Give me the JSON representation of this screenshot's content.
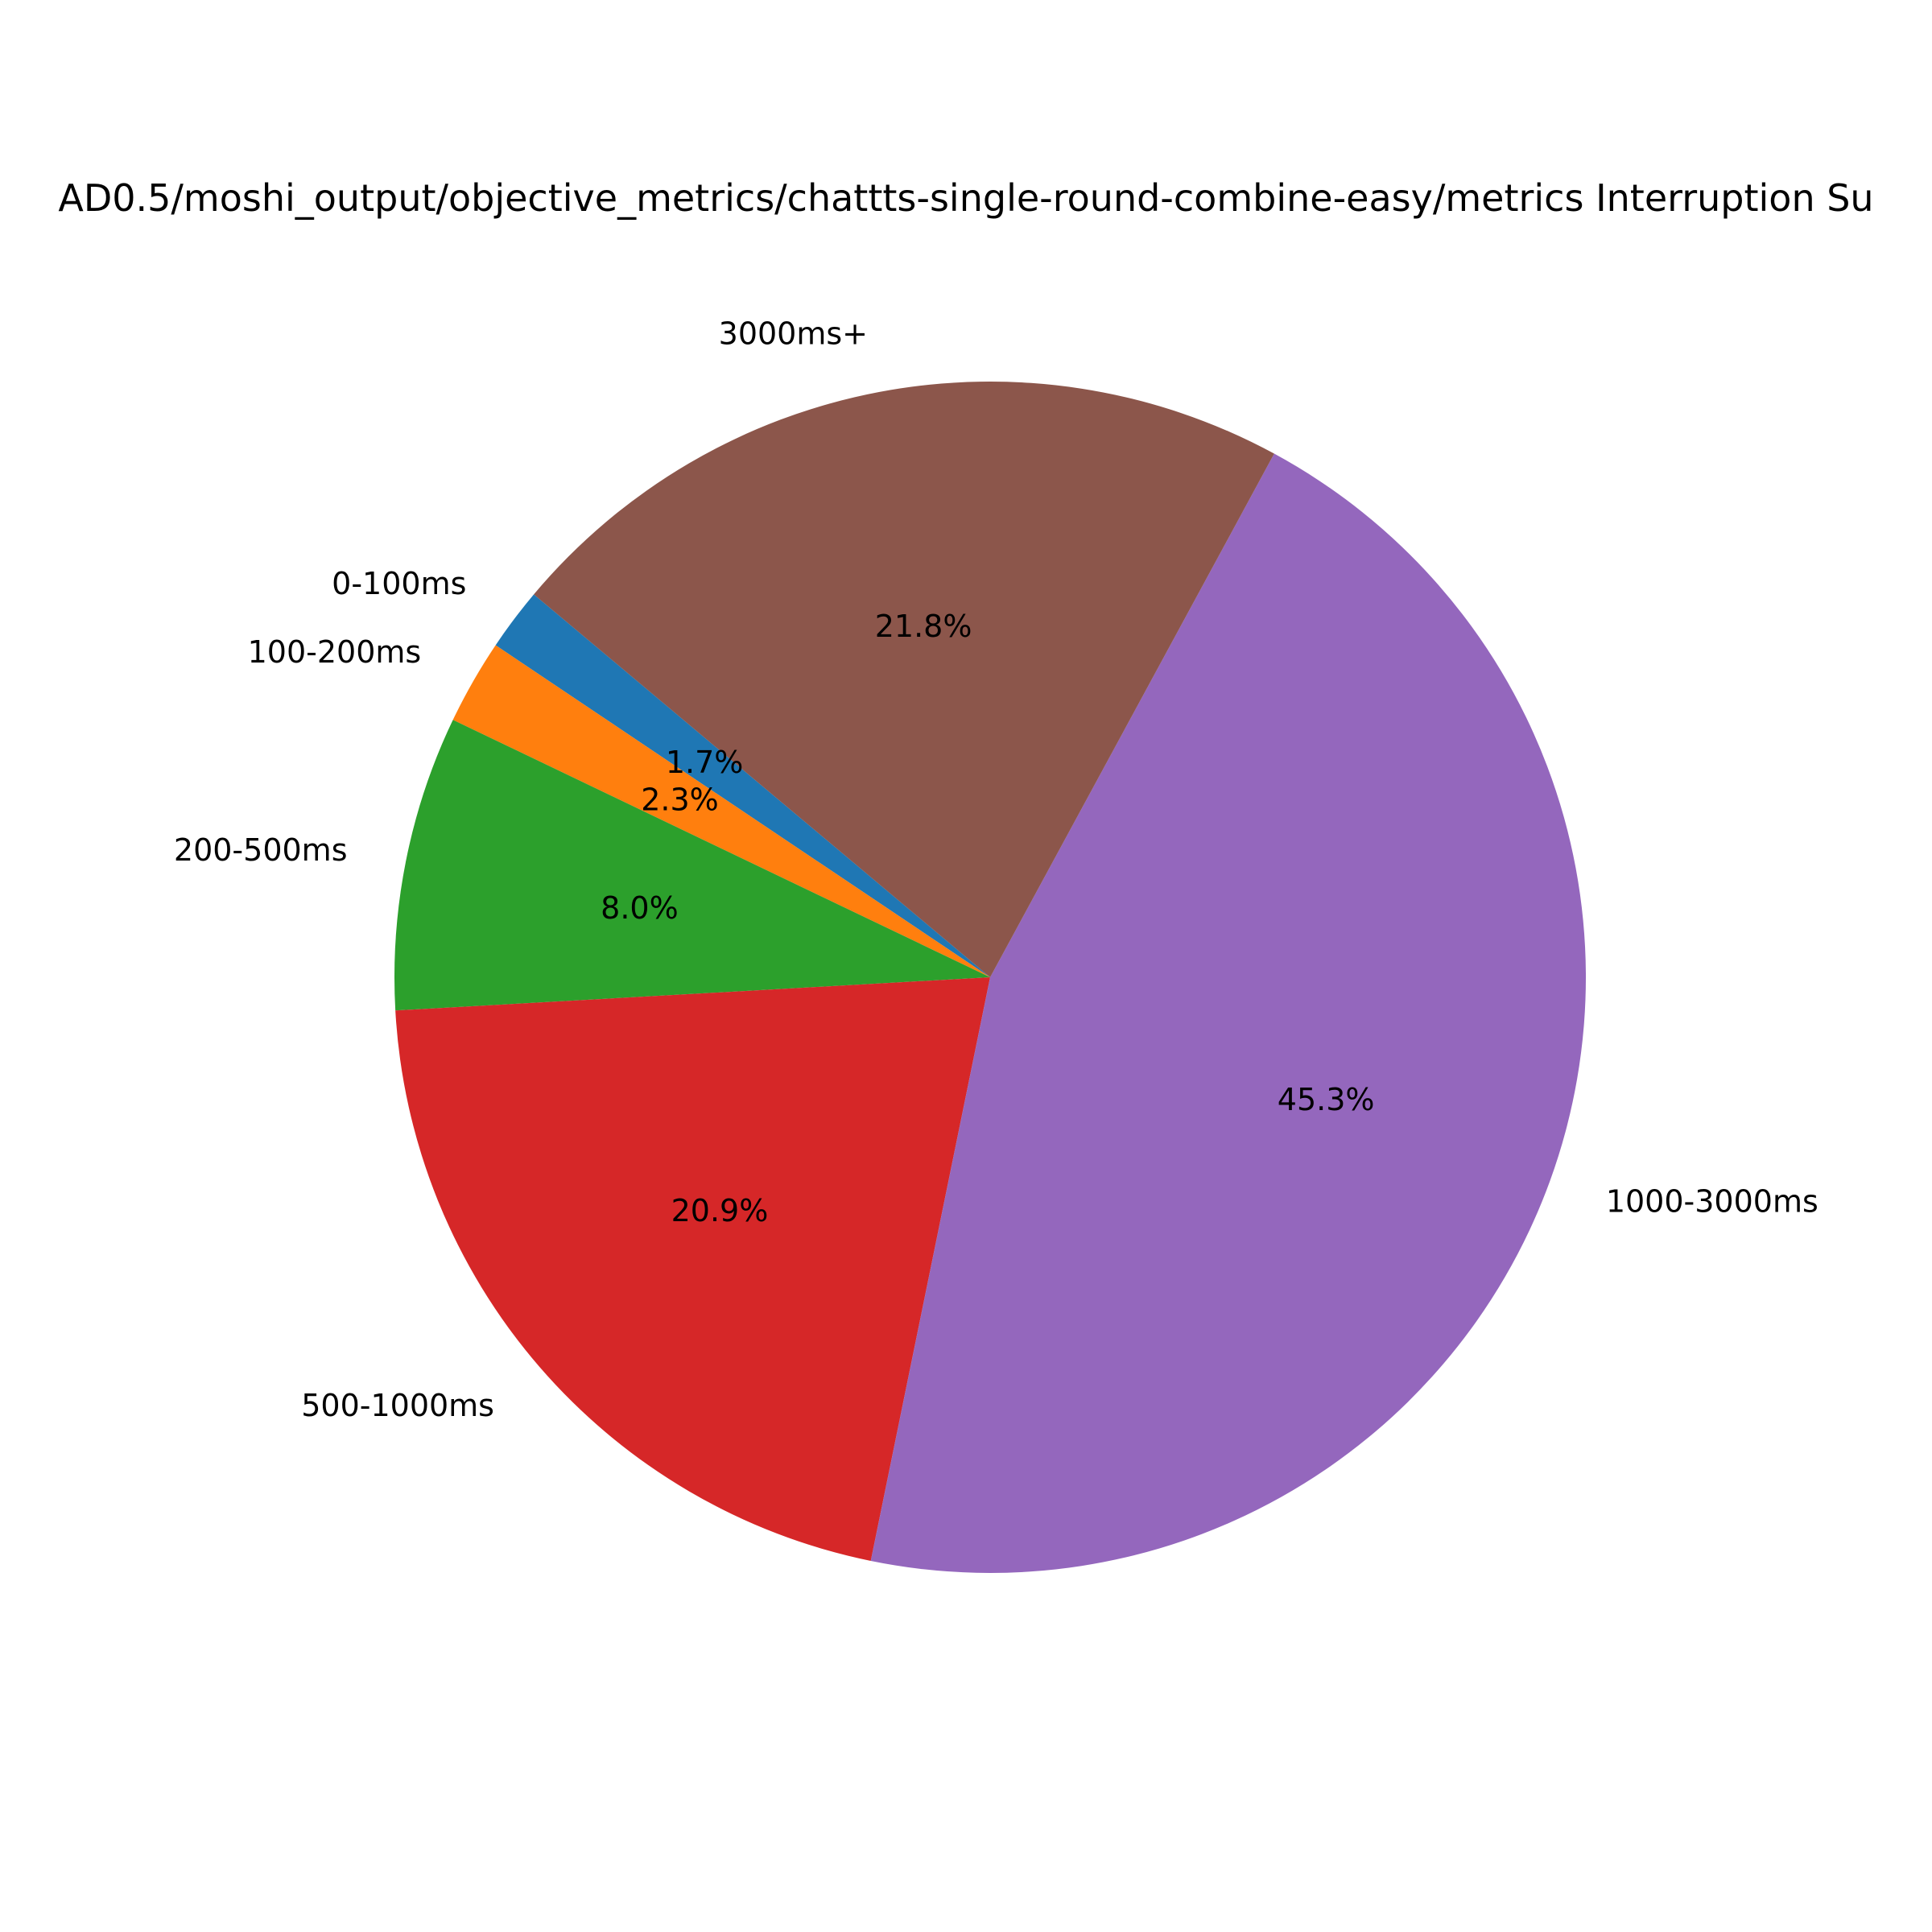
{
  "chart_data": {
    "type": "pie",
    "title": "...AD0.5/moshi_output/objective_metrics/chattts-single-round-combine-easy/metrics Interruption S...",
    "title_visible": "AD0.5/moshi_output/objective_metrics/chattts-single-round-combine-easy/metrics Interruption Su",
    "start_angle_deg": 140,
    "direction": "counterclockwise",
    "slices": [
      {
        "label": "0-100ms",
        "value": 1.7,
        "pct_label": "1.7%",
        "color": "#1f77b4"
      },
      {
        "label": "100-200ms",
        "value": 2.3,
        "pct_label": "2.3%",
        "color": "#ff7f0e"
      },
      {
        "label": "200-500ms",
        "value": 8.0,
        "pct_label": "8.0%",
        "color": "#2ca02c"
      },
      {
        "label": "500-1000ms",
        "value": 20.9,
        "pct_label": "20.9%",
        "color": "#d62728"
      },
      {
        "label": "1000-3000ms",
        "value": 45.3,
        "pct_label": "45.3%",
        "color": "#9467bd"
      },
      {
        "label": "3000ms+",
        "value": 21.8,
        "pct_label": "21.8%",
        "color": "#8c564b"
      }
    ]
  }
}
